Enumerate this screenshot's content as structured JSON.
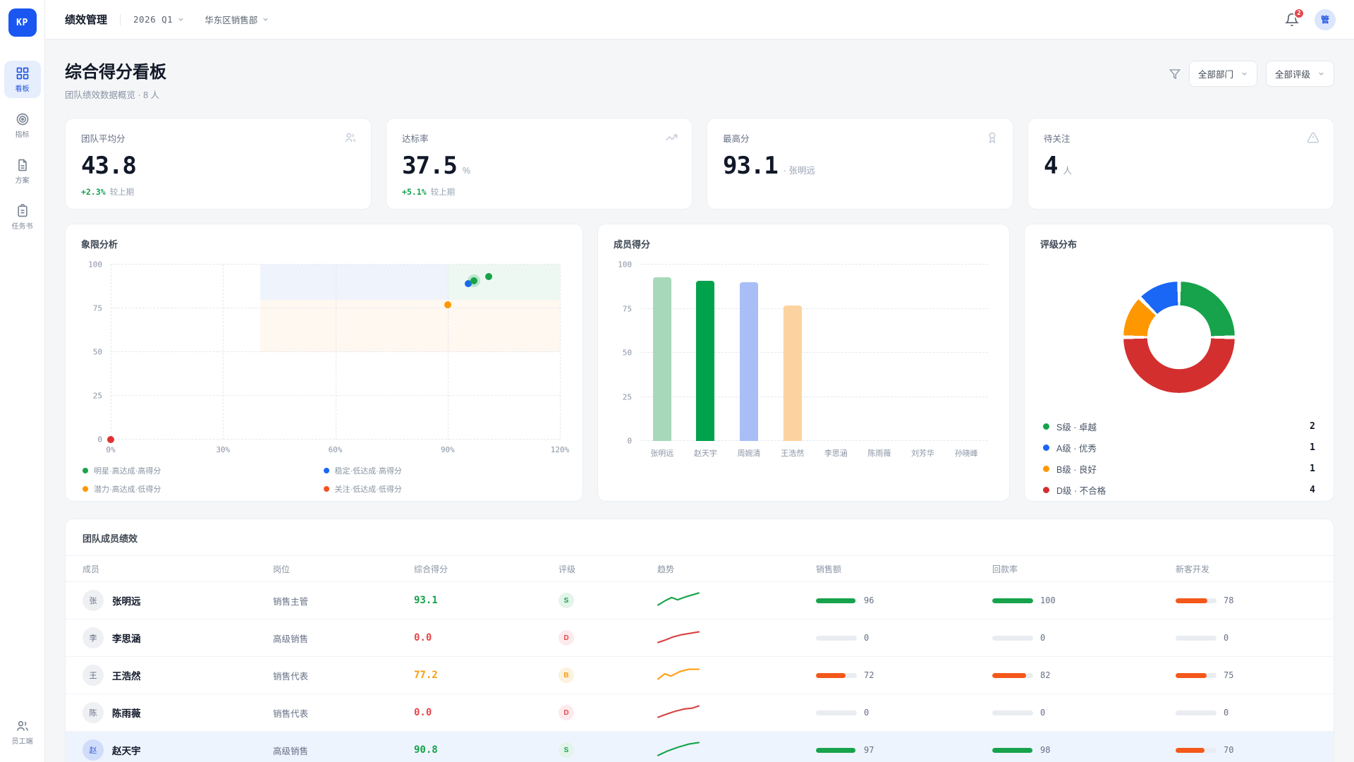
{
  "theme": {
    "accent": "#1a56f0",
    "green": "#17a34b",
    "blue": "#1a66f5",
    "orange": "#ff9800",
    "red": "#d32f2f"
  },
  "app": {
    "logo": "KP",
    "title": "绩效管理",
    "period": "2026 Q1",
    "department": "华东区销售部",
    "notification_count": "2",
    "avatar": "管"
  },
  "sidebar": {
    "items": [
      {
        "label": "看板",
        "active": true
      },
      {
        "label": "指标",
        "active": false
      },
      {
        "label": "方案",
        "active": false
      },
      {
        "label": "任务书",
        "active": false
      }
    ],
    "bottom": {
      "label": "员工端"
    }
  },
  "page": {
    "title": "综合得分看板",
    "subtitle": "团队绩效数据概览 · 8 人",
    "filters": {
      "department": "全部部门",
      "rating": "全部评级"
    }
  },
  "kpis": [
    {
      "label": "团队平均分",
      "value": "43.8",
      "suffix": "",
      "delta": "+2.3%",
      "delta_note": "较上期"
    },
    {
      "label": "达标率",
      "value": "37.5",
      "suffix": "%",
      "delta": "+5.1%",
      "delta_note": "较上期"
    },
    {
      "label": "最高分",
      "value": "93.1",
      "suffix": "· 张明远",
      "delta": "",
      "delta_note": ""
    },
    {
      "label": "待关注",
      "value": "4",
      "suffix": "人",
      "delta": "",
      "delta_note": ""
    }
  ],
  "chart_data": [
    {
      "type": "scatter",
      "title": "象限分析",
      "x_tick_labels": [
        "0%",
        "30%",
        "60%",
        "90%",
        "120%"
      ],
      "x_ticks": [
        0,
        30,
        60,
        90,
        120
      ],
      "y_ticks": [
        0,
        25,
        50,
        75,
        100
      ],
      "x_max": 120,
      "y_max": 100,
      "zones": [
        {
          "x0": 40,
          "x1": 90,
          "y0": 80,
          "y1": 100,
          "color": "#eff3fc"
        },
        {
          "x0": 90,
          "x1": 120,
          "y0": 80,
          "y1": 100,
          "color": "#eef8f2"
        },
        {
          "x0": 40,
          "x1": 120,
          "y0": 50,
          "y1": 80,
          "color": "#fef8f0"
        }
      ],
      "points": [
        {
          "x": 0,
          "y": 0,
          "color": "#e03131",
          "halo": false
        },
        {
          "x": 90,
          "y": 77,
          "color": "#ff9800",
          "halo": false
        },
        {
          "x": 95.5,
          "y": 89,
          "color": "#1a66f5",
          "halo": false
        },
        {
          "x": 97,
          "y": 90.8,
          "color": "#17a34b",
          "halo": true
        },
        {
          "x": 101,
          "y": 93.1,
          "color": "#17a34b",
          "halo": false
        }
      ],
      "legend": [
        {
          "label": "明星·高达成·高得分",
          "color": "#17a34b"
        },
        {
          "label": "稳定·低达成·高得分",
          "color": "#1a66f5"
        },
        {
          "label": "潜力·高达成·低得分",
          "color": "#ff9800"
        },
        {
          "label": "关注·低达成·低得分",
          "color": "#f4511e"
        }
      ]
    },
    {
      "type": "bar",
      "title": "成员得分",
      "categories": [
        "张明远",
        "赵天宇",
        "周婉清",
        "王浩然",
        "李思涵",
        "陈雨薇",
        "刘芳华",
        "孙晓峰"
      ],
      "values": [
        93,
        91,
        90,
        77,
        0,
        0,
        0,
        0
      ],
      "colors": [
        "#a6d8b9",
        "#00a24c",
        "#a9bef6",
        "#fcd3a0",
        "#e5e7eb",
        "#e5e7eb",
        "#e5e7eb",
        "#e5e7eb"
      ],
      "y_ticks": [
        0,
        25,
        50,
        75,
        100
      ],
      "y_max": 100
    },
    {
      "type": "donut",
      "title": "评级分布",
      "total": 8,
      "segments": [
        {
          "label": "S级 · 卓越",
          "value": 2,
          "color": "#17a34b"
        },
        {
          "label": "A级 · 优秀",
          "value": 1,
          "color": "#1a66f5"
        },
        {
          "label": "B级 · 良好",
          "value": 1,
          "color": "#ff9800"
        },
        {
          "label": "D级 · 不合格",
          "value": 4,
          "color": "#d32f2f"
        }
      ],
      "draw_order": [
        0,
        3,
        2,
        1
      ]
    }
  ],
  "table": {
    "title": "团队成员绩效",
    "columns": [
      "成员",
      "岗位",
      "综合得分",
      "评级",
      "趋势",
      "销售额",
      "回款率",
      "新客开发"
    ],
    "score_colors": {
      "good": "#15a24a",
      "mid": "#f59e0b",
      "bad": "#e5484d"
    },
    "grade_styles": {
      "S": {
        "color": "#15a24a",
        "bg": "#e3f4ea"
      },
      "B": {
        "color": "#f59e0b",
        "bg": "#fcf2de"
      },
      "D": {
        "color": "#e5484d",
        "bg": "#fdeaec"
      }
    },
    "metric_colors": {
      "high": "#17a34b",
      "mid": "#f4581a",
      "zero": "#dfe3e9"
    },
    "rows": [
      {
        "avatar": "张",
        "avatar_blue": false,
        "name": "张明远",
        "position": "销售主管",
        "score": "93.1",
        "score_tone": "good",
        "grade": "S",
        "trend": {
          "color": "#17a34b",
          "points": [
            [
              1,
              19
            ],
            [
              11,
              13
            ],
            [
              19,
              9
            ],
            [
              27,
              12
            ],
            [
              38,
              8
            ],
            [
              55,
              3
            ]
          ]
        },
        "sales": 96,
        "collection": 100,
        "new_customers": 78,
        "highlighted": false
      },
      {
        "avatar": "李",
        "avatar_blue": false,
        "name": "李思涵",
        "position": "高级销售",
        "score": "0.0",
        "score_tone": "bad",
        "grade": "D",
        "trend": {
          "color": "#d84343",
          "points": [
            [
              1,
              19
            ],
            [
              10,
              16
            ],
            [
              20,
              12
            ],
            [
              31,
              9
            ],
            [
              43,
              7
            ],
            [
              55,
              5
            ]
          ]
        },
        "sales": 0,
        "collection": 0,
        "new_customers": 0,
        "highlighted": false
      },
      {
        "avatar": "王",
        "avatar_blue": false,
        "name": "王浩然",
        "position": "销售代表",
        "score": "77.2",
        "score_tone": "mid",
        "grade": "B",
        "trend": {
          "color": "#ffa014",
          "points": [
            [
              1,
              18
            ],
            [
              10,
              11
            ],
            [
              18,
              14
            ],
            [
              30,
              8
            ],
            [
              42,
              5
            ],
            [
              55,
              5
            ]
          ]
        },
        "sales": 72,
        "collection": 82,
        "new_customers": 75,
        "highlighted": false
      },
      {
        "avatar": "陈",
        "avatar_blue": false,
        "name": "陈雨薇",
        "position": "销售代表",
        "score": "0.0",
        "score_tone": "bad",
        "grade": "D",
        "trend": {
          "color": "#d84343",
          "points": [
            [
              1,
              19
            ],
            [
              12,
              15
            ],
            [
              24,
              11
            ],
            [
              36,
              8
            ],
            [
              46,
              7
            ],
            [
              55,
              4
            ]
          ]
        },
        "sales": 0,
        "collection": 0,
        "new_customers": 0,
        "highlighted": false
      },
      {
        "avatar": "赵",
        "avatar_blue": true,
        "name": "赵天宇",
        "position": "高级销售",
        "score": "90.8",
        "score_tone": "good",
        "grade": "S",
        "trend": {
          "color": "#17a34b",
          "points": [
            [
              1,
              20
            ],
            [
              14,
              14
            ],
            [
              28,
              9
            ],
            [
              42,
              5
            ],
            [
              55,
              3
            ]
          ]
        },
        "sales": 97,
        "collection": 98,
        "new_customers": 70,
        "highlighted": true
      }
    ]
  }
}
